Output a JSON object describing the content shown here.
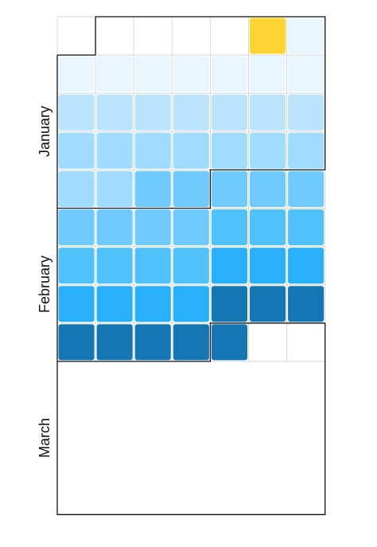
{
  "chart_data": {
    "type": "heatmap",
    "title": "",
    "layout": "vertical calendar heatmap (weeks as rows, weekdays as columns)",
    "months": [
      "January",
      "February",
      "March"
    ],
    "columns": 7,
    "first_cell_column": 5,
    "day_levels": [
      4,
      0,
      0,
      0,
      0,
      0,
      0,
      0,
      0,
      1,
      1,
      1,
      1,
      1,
      1,
      1,
      2,
      2,
      2,
      2,
      2,
      2,
      2,
      2,
      2,
      3,
      3,
      3,
      3,
      3,
      3,
      3,
      3,
      3,
      4,
      4,
      4,
      4,
      4,
      4,
      4,
      5,
      5,
      5,
      5,
      5,
      5,
      5,
      6,
      6,
      6,
      6,
      6,
      6,
      6,
      6
    ],
    "level_colors": [
      "#e8f6fd",
      "#b9e4fb",
      "#9fdcfd",
      "#6fcbfd",
      "#4fc1fb",
      "#29b0fb",
      "#1476b3"
    ],
    "highlight_color": "#fdd531",
    "grid_color": "#d8d8d8",
    "outline_color": "#111111"
  }
}
